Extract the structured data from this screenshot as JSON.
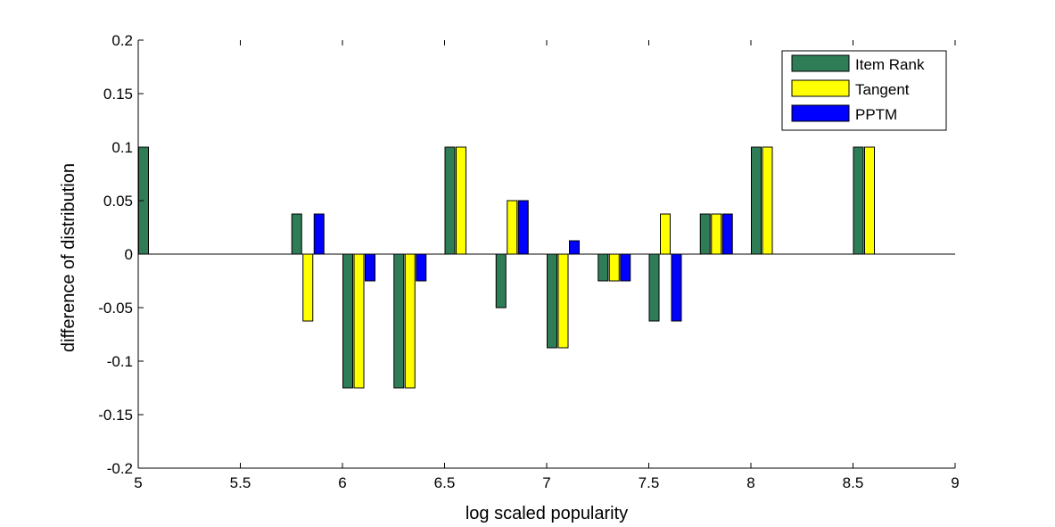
{
  "chart_data": {
    "type": "bar",
    "title": "",
    "xlabel": "log scaled popularity",
    "ylabel": "difference of distribution",
    "xlim": [
      5,
      9
    ],
    "ylim": [
      -0.2,
      0.2
    ],
    "xticks": [
      5,
      5.5,
      6,
      6.5,
      7,
      7.5,
      8,
      8.5,
      9
    ],
    "yticks": [
      0.2,
      0.15,
      0.1,
      0.05,
      0,
      -0.05,
      -0.1,
      -0.15,
      -0.2
    ],
    "xtick_labels": [
      "5",
      "5.5",
      "6",
      "6.5",
      "7",
      "7.5",
      "8",
      "8.5",
      "9"
    ],
    "ytick_labels": [
      "0.2",
      "0.15",
      "0.1",
      "0.05",
      "0",
      "-0.05",
      "-0.1",
      "-0.15",
      "-0.2"
    ],
    "grid": false,
    "legend_position": "top-right",
    "x": [
      5.0,
      5.25,
      5.5,
      5.75,
      6.0,
      6.25,
      6.5,
      6.75,
      7.0,
      7.25,
      7.5,
      7.75,
      8.0,
      8.25,
      8.5
    ],
    "series": [
      {
        "name": "Item Rank",
        "color": "#2e7d56",
        "values": [
          0.1,
          0,
          0,
          0.0375,
          -0.125,
          -0.125,
          0.1,
          -0.05,
          -0.0875,
          -0.025,
          -0.0625,
          0.0375,
          0.1,
          0,
          0.1
        ]
      },
      {
        "name": "Tangent",
        "color": "#ffff00",
        "values": [
          0,
          0,
          0,
          -0.0625,
          -0.125,
          -0.125,
          0.1,
          0.05,
          -0.0875,
          -0.025,
          0.0375,
          0.0375,
          0.1,
          0,
          0.1
        ]
      },
      {
        "name": "PPTM",
        "color": "#0000ff",
        "values": [
          0,
          0,
          0,
          0.0375,
          -0.025,
          -0.025,
          0,
          0.05,
          0.0125,
          -0.025,
          -0.0625,
          0.0375,
          0,
          0,
          0
        ]
      }
    ]
  }
}
